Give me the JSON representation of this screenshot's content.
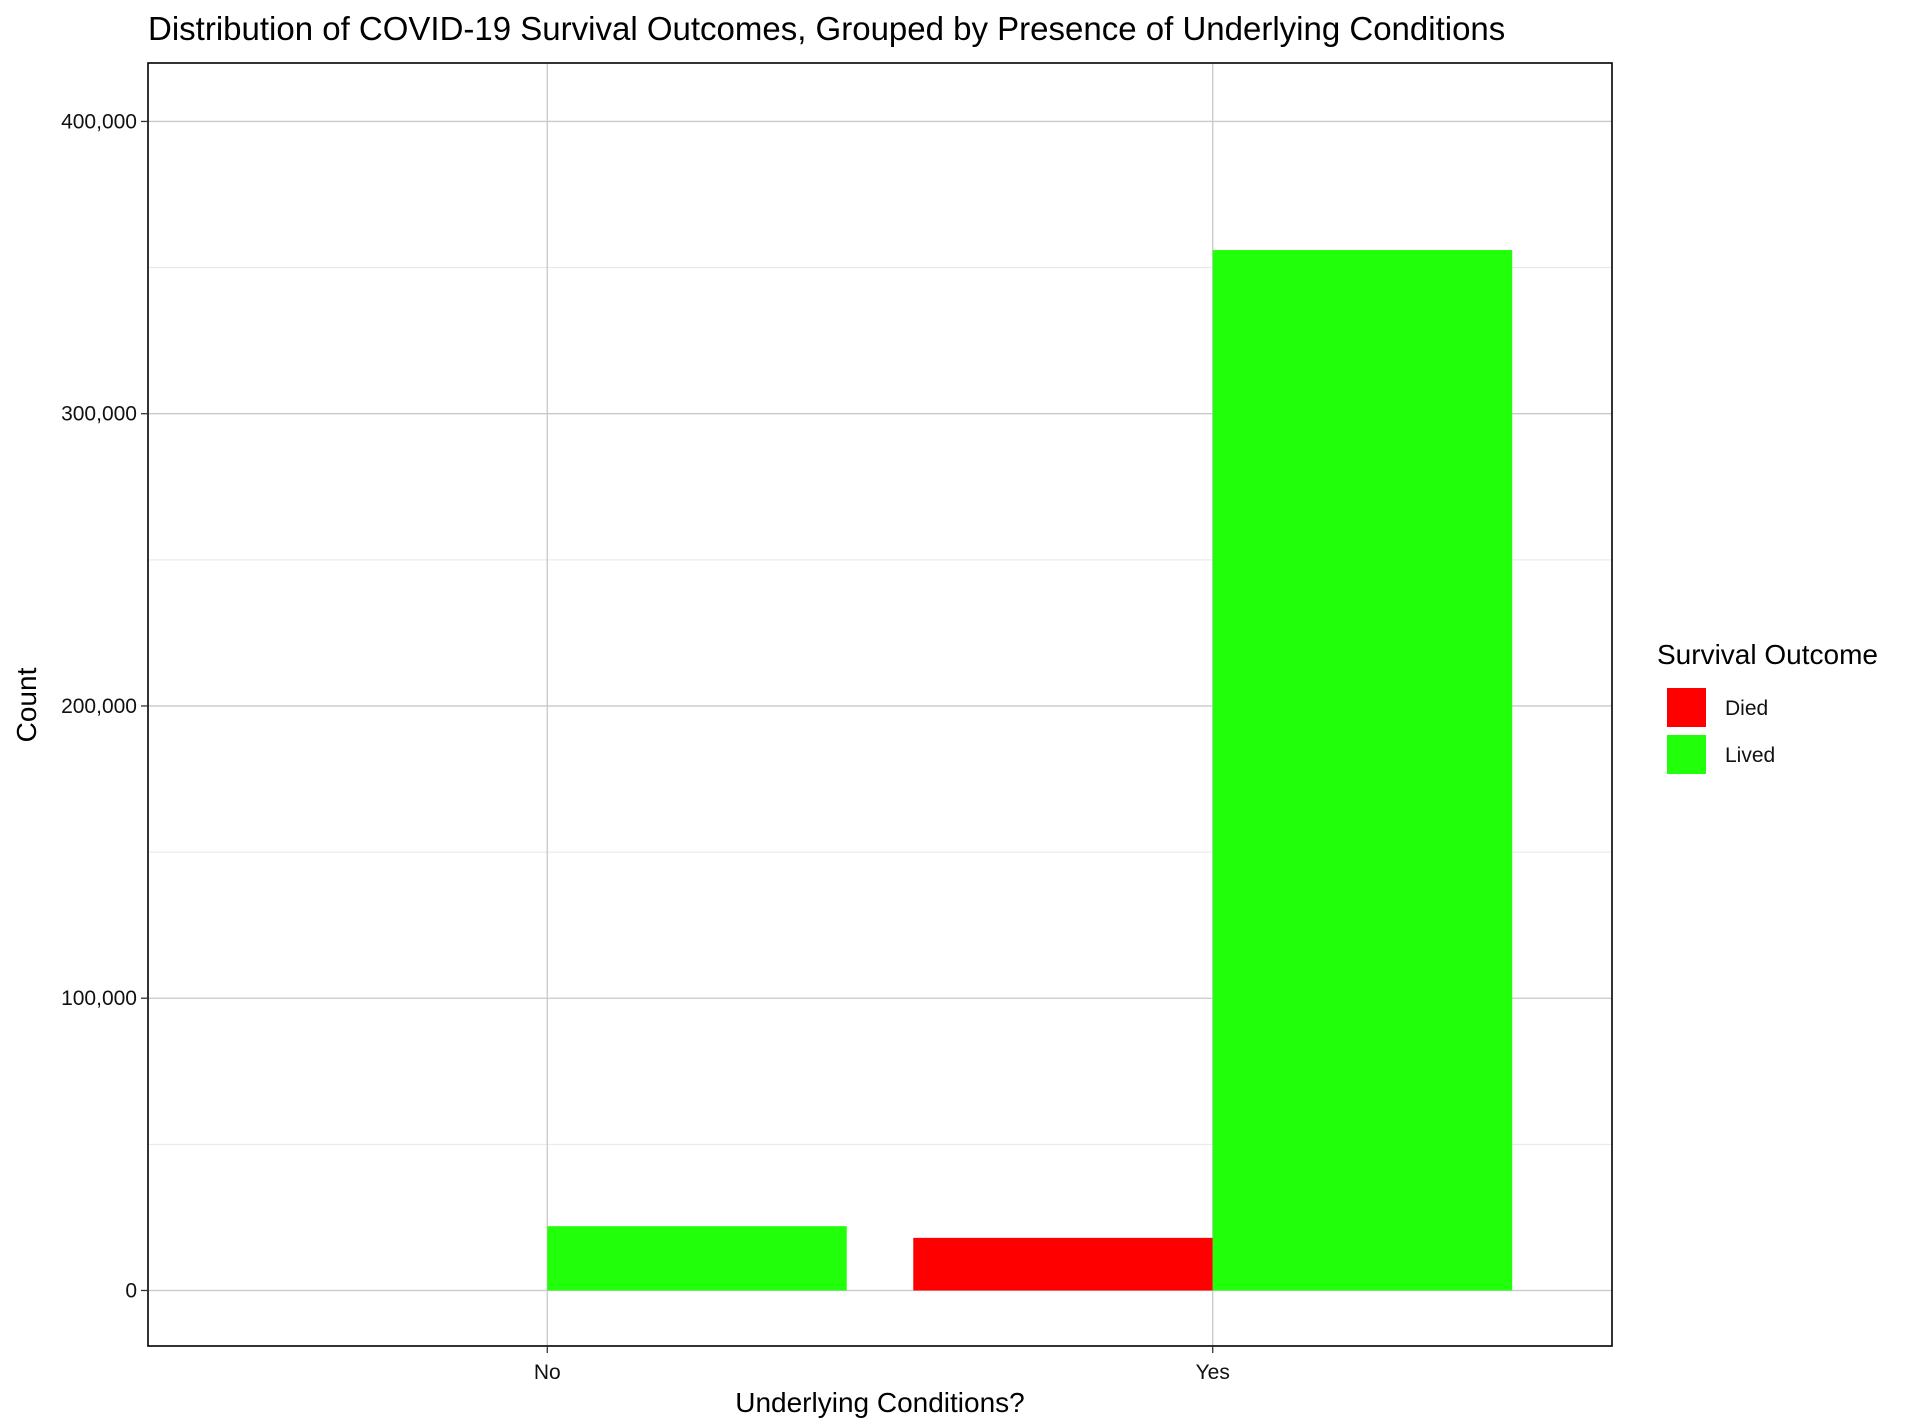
{
  "chart_data": {
    "type": "bar",
    "title": "Distribution of COVID-19 Survival Outcomes, Grouped by Presence of Underlying Conditions",
    "xlabel": "Underlying Conditions?",
    "ylabel": "Count",
    "categories": [
      "No",
      "Yes"
    ],
    "ylim": [
      -19000,
      420000
    ],
    "yticks": [
      0,
      100000,
      200000,
      300000,
      400000
    ],
    "ytick_labels": [
      "0",
      "100,000",
      "200,000",
      "300,000",
      "400,000"
    ],
    "grid": true,
    "legend": {
      "title": "Survival Outcome",
      "position": "right"
    },
    "series": [
      {
        "name": "Died",
        "color": "#FF0000",
        "values": [
          null,
          18000
        ]
      },
      {
        "name": "Lived",
        "color": "#22FF0A",
        "values": [
          22000,
          356000
        ]
      }
    ]
  }
}
